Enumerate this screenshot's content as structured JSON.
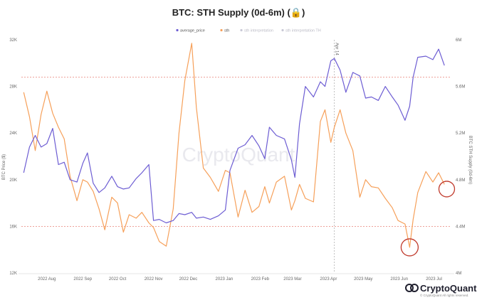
{
  "chart_data": {
    "type": "line",
    "title": "BTC: STH Supply (0d-6m) (🔒)",
    "legend": [
      {
        "name": "average_price",
        "active": true
      },
      {
        "name": "sth",
        "active": true
      },
      {
        "name": "sth interpretation",
        "active": false
      },
      {
        "name": "sth interpretation TH",
        "active": false
      }
    ],
    "x_ticks": [
      "2022 Aug",
      "2022 Sep",
      "2022 Oct",
      "2022 Nov",
      "2022 Dec",
      "2023 Jan",
      "2023 Feb",
      "2023 Mar",
      "2023 Apr",
      "2023 May",
      "2023 Jun",
      "2023 Jul"
    ],
    "ylabel_left": "BTC Price ($)",
    "ylabel_right": "BTC STH Supply (0d-6m)",
    "y_left_ticks": [
      "12K",
      "16K",
      "20K",
      "24K",
      "28K",
      "32K"
    ],
    "y_left_range": [
      12000,
      32000
    ],
    "y_right_ticks": [
      "4M",
      "4.4M",
      "4.8M",
      "5.2M",
      "5.6M",
      "6M"
    ],
    "y_right_range": [
      4000000,
      6000000
    ],
    "annotation": "Apr 14",
    "watermark": "CryptoQuant",
    "grid": false,
    "legend_position": "top",
    "reference_lines_right": [
      5680000,
      4400000
    ],
    "series": [
      {
        "name": "average_price",
        "color": "#6d5dd3",
        "values": [
          [
            "2022-07-20",
            20600
          ],
          [
            "2022-07-25",
            22800
          ],
          [
            "2022-07-30",
            23800
          ],
          [
            "2022-08-04",
            22800
          ],
          [
            "2022-08-09",
            23100
          ],
          [
            "2022-08-14",
            24400
          ],
          [
            "2022-08-19",
            21300
          ],
          [
            "2022-08-24",
            21500
          ],
          [
            "2022-08-29",
            20000
          ],
          [
            "2022-09-04",
            19800
          ],
          [
            "2022-09-09",
            21400
          ],
          [
            "2022-09-13",
            22300
          ],
          [
            "2022-09-18",
            19700
          ],
          [
            "2022-09-23",
            18900
          ],
          [
            "2022-09-28",
            19300
          ],
          [
            "2022-10-04",
            20300
          ],
          [
            "2022-10-09",
            19400
          ],
          [
            "2022-10-14",
            19200
          ],
          [
            "2022-10-19",
            19300
          ],
          [
            "2022-10-25",
            20100
          ],
          [
            "2022-10-30",
            20600
          ],
          [
            "2022-11-05",
            21300
          ],
          [
            "2022-11-09",
            16500
          ],
          [
            "2022-11-14",
            16600
          ],
          [
            "2022-11-20",
            16300
          ],
          [
            "2022-11-26",
            16500
          ],
          [
            "2022-12-01",
            17100
          ],
          [
            "2022-12-06",
            17000
          ],
          [
            "2022-12-12",
            17200
          ],
          [
            "2022-12-16",
            16700
          ],
          [
            "2022-12-22",
            16800
          ],
          [
            "2022-12-28",
            16600
          ],
          [
            "2023-01-04",
            16900
          ],
          [
            "2023-01-10",
            17400
          ],
          [
            "2023-01-14",
            20800
          ],
          [
            "2023-01-21",
            22700
          ],
          [
            "2023-01-27",
            23000
          ],
          [
            "2023-02-02",
            23800
          ],
          [
            "2023-02-08",
            22900
          ],
          [
            "2023-02-13",
            21800
          ],
          [
            "2023-02-17",
            24500
          ],
          [
            "2023-02-23",
            23800
          ],
          [
            "2023-03-02",
            23500
          ],
          [
            "2023-03-08",
            21700
          ],
          [
            "2023-03-11",
            20200
          ],
          [
            "2023-03-15",
            24800
          ],
          [
            "2023-03-20",
            28000
          ],
          [
            "2023-03-27",
            27100
          ],
          [
            "2023-04-02",
            28400
          ],
          [
            "2023-04-06",
            28000
          ],
          [
            "2023-04-11",
            30200
          ],
          [
            "2023-04-14",
            30400
          ],
          [
            "2023-04-19",
            29400
          ],
          [
            "2023-04-24",
            27500
          ],
          [
            "2023-04-30",
            29200
          ],
          [
            "2023-05-06",
            28900
          ],
          [
            "2023-05-11",
            27000
          ],
          [
            "2023-05-16",
            27100
          ],
          [
            "2023-05-22",
            26800
          ],
          [
            "2023-05-28",
            28000
          ],
          [
            "2023-06-03",
            27100
          ],
          [
            "2023-06-08",
            26400
          ],
          [
            "2023-06-14",
            25100
          ],
          [
            "2023-06-18",
            26300
          ],
          [
            "2023-06-21",
            28800
          ],
          [
            "2023-06-25",
            30500
          ],
          [
            "2023-07-02",
            30600
          ],
          [
            "2023-07-08",
            30300
          ],
          [
            "2023-07-13",
            31200
          ],
          [
            "2023-07-18",
            29800
          ]
        ]
      },
      {
        "name": "sth",
        "color": "#f6a05a",
        "values": [
          [
            "2022-07-20",
            5550000
          ],
          [
            "2022-07-25",
            5340000
          ],
          [
            "2022-07-30",
            5050000
          ],
          [
            "2022-08-04",
            5360000
          ],
          [
            "2022-08-09",
            5560000
          ],
          [
            "2022-08-14",
            5370000
          ],
          [
            "2022-08-19",
            5250000
          ],
          [
            "2022-08-24",
            5150000
          ],
          [
            "2022-08-29",
            4830000
          ],
          [
            "2022-09-04",
            4620000
          ],
          [
            "2022-09-09",
            4800000
          ],
          [
            "2022-09-13",
            4780000
          ],
          [
            "2022-09-18",
            4700000
          ],
          [
            "2022-09-23",
            4550000
          ],
          [
            "2022-09-28",
            4370000
          ],
          [
            "2022-10-04",
            4650000
          ],
          [
            "2022-10-09",
            4600000
          ],
          [
            "2022-10-14",
            4350000
          ],
          [
            "2022-10-19",
            4500000
          ],
          [
            "2022-10-25",
            4470000
          ],
          [
            "2022-10-30",
            4520000
          ],
          [
            "2022-11-05",
            4430000
          ],
          [
            "2022-11-09",
            4390000
          ],
          [
            "2022-11-14",
            4270000
          ],
          [
            "2022-11-20",
            4230000
          ],
          [
            "2022-11-26",
            4550000
          ],
          [
            "2022-12-01",
            5200000
          ],
          [
            "2022-12-06",
            5650000
          ],
          [
            "2022-12-12",
            5970000
          ],
          [
            "2022-12-16",
            5420000
          ],
          [
            "2022-12-22",
            4900000
          ],
          [
            "2022-12-28",
            4820000
          ],
          [
            "2023-01-04",
            4700000
          ],
          [
            "2023-01-10",
            4880000
          ],
          [
            "2023-01-14",
            4860000
          ],
          [
            "2023-01-21",
            4480000
          ],
          [
            "2023-01-27",
            4710000
          ],
          [
            "2023-02-02",
            4520000
          ],
          [
            "2023-02-08",
            4570000
          ],
          [
            "2023-02-13",
            4740000
          ],
          [
            "2023-02-17",
            4600000
          ],
          [
            "2023-02-23",
            4780000
          ],
          [
            "2023-03-02",
            4830000
          ],
          [
            "2023-03-08",
            4540000
          ],
          [
            "2023-03-11",
            4620000
          ],
          [
            "2023-03-15",
            4760000
          ],
          [
            "2023-03-20",
            4640000
          ],
          [
            "2023-03-27",
            4610000
          ],
          [
            "2023-04-02",
            5300000
          ],
          [
            "2023-04-06",
            5400000
          ],
          [
            "2023-04-11",
            5120000
          ],
          [
            "2023-04-14",
            5250000
          ],
          [
            "2023-04-19",
            5400000
          ],
          [
            "2023-04-24",
            5200000
          ],
          [
            "2023-04-30",
            5050000
          ],
          [
            "2023-05-06",
            4650000
          ],
          [
            "2023-05-11",
            4800000
          ],
          [
            "2023-05-16",
            4740000
          ],
          [
            "2023-05-22",
            4730000
          ],
          [
            "2023-05-28",
            4640000
          ],
          [
            "2023-06-03",
            4560000
          ],
          [
            "2023-06-08",
            4450000
          ],
          [
            "2023-06-14",
            4420000
          ],
          [
            "2023-06-18",
            4220000
          ],
          [
            "2023-06-21",
            4460000
          ],
          [
            "2023-06-25",
            4690000
          ],
          [
            "2023-07-02",
            4870000
          ],
          [
            "2023-07-08",
            4780000
          ],
          [
            "2023-07-13",
            4860000
          ],
          [
            "2023-07-18",
            4760000
          ]
        ]
      }
    ],
    "marked_points": [
      {
        "series": "sth",
        "x": "2023-06-18",
        "y": 4220000
      },
      {
        "series": "sth",
        "x": "2023-07-20",
        "y": 4720000
      }
    ]
  },
  "footer": {
    "brand": "CryptoQuant",
    "copyright": "© CryptoQuant All rights reserved."
  },
  "colors": {
    "price": "#6d5dd3",
    "sth": "#f6a05a",
    "reference_line": "#e88278",
    "marker": "#c0392b"
  }
}
